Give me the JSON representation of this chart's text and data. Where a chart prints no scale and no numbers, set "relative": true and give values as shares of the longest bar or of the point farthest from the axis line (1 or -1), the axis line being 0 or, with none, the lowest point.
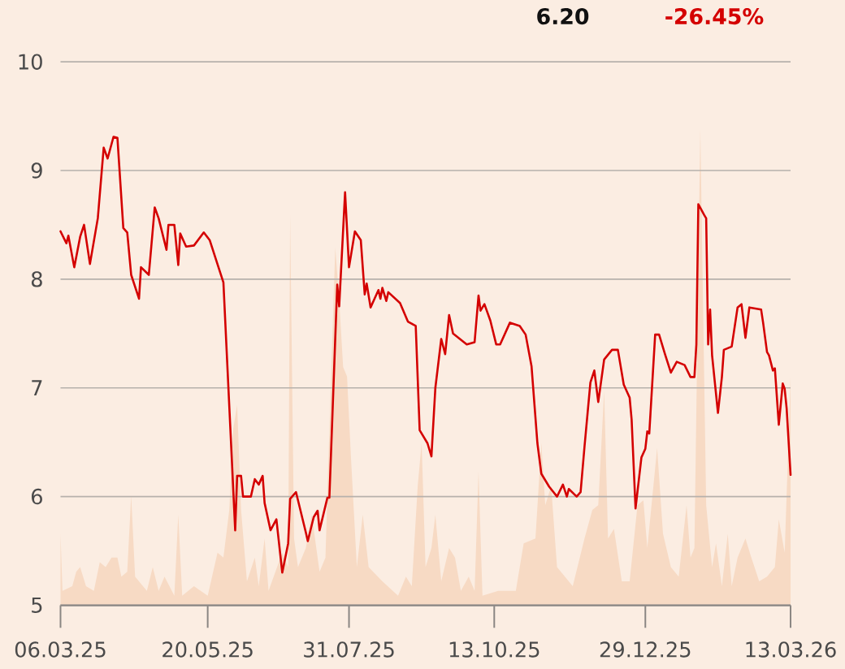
{
  "chart_data": [
    {
      "type": "area",
      "relative": true,
      "color": "#f7dac4",
      "xlim": [
        "2025-03-06",
        "2026-03-13"
      ],
      "xticks": [
        {
          "value": "2025-03-06",
          "label": "06.03.25"
        },
        {
          "value": "2025-05-20",
          "label": "20.05.25"
        },
        {
          "value": "2025-07-31",
          "label": "31.07.25"
        },
        {
          "value": "2025-10-13",
          "label": "13.10.25"
        },
        {
          "value": "2025-12-29",
          "label": "29.12.25"
        },
        {
          "value": "2026-03-13",
          "label": "13.03.26"
        }
      ],
      "x": [
        "2025-03-06",
        "2025-03-07",
        "2025-03-12",
        "2025-03-14",
        "2025-03-16",
        "2025-03-19",
        "2025-03-23",
        "2025-03-26",
        "2025-03-29",
        "2025-04-01",
        "2025-04-04",
        "2025-04-06",
        "2025-04-09",
        "2025-04-11",
        "2025-04-13",
        "2025-04-19",
        "2025-04-22",
        "2025-04-25",
        "2025-04-28",
        "2025-05-03",
        "2025-05-05",
        "2025-05-07",
        "2025-05-13",
        "2025-05-20",
        "2025-05-25",
        "2025-05-28",
        "2025-05-31",
        "2025-06-02",
        "2025-06-04",
        "2025-06-06",
        "2025-06-09",
        "2025-06-13",
        "2025-06-15",
        "2025-06-18",
        "2025-06-20",
        "2025-06-27",
        "2025-06-30",
        "2025-07-01",
        "2025-07-03",
        "2025-07-05",
        "2025-07-09",
        "2025-07-12",
        "2025-07-16",
        "2025-07-19",
        "2025-07-21",
        "2025-07-24",
        "2025-07-26",
        "2025-07-28",
        "2025-07-30",
        "2025-08-01",
        "2025-08-04",
        "2025-08-07",
        "2025-08-10",
        "2025-08-17",
        "2025-08-25",
        "2025-08-29",
        "2025-09-01",
        "2025-09-04",
        "2025-09-06",
        "2025-09-08",
        "2025-09-11",
        "2025-09-13",
        "2025-09-16",
        "2025-09-20",
        "2025-09-23",
        "2025-09-26",
        "2025-09-30",
        "2025-10-03",
        "2025-10-05",
        "2025-10-07",
        "2025-10-15",
        "2025-10-24",
        "2025-10-28",
        "2025-11-03",
        "2025-11-06",
        "2025-11-08",
        "2025-11-11",
        "2025-11-14",
        "2025-11-18",
        "2025-11-22",
        "2025-11-28",
        "2025-12-02",
        "2025-12-05",
        "2025-12-08",
        "2025-12-10",
        "2025-12-13",
        "2025-12-17",
        "2025-12-21",
        "2025-12-25",
        "2025-12-28",
        "2025-12-30",
        "2026-01-04",
        "2026-01-07",
        "2026-01-11",
        "2026-01-15",
        "2026-01-19",
        "2026-01-21",
        "2026-01-23",
        "2026-01-26",
        "2026-01-29",
        "2026-02-01",
        "2026-02-03",
        "2026-02-06",
        "2026-02-09",
        "2026-02-11",
        "2026-02-14",
        "2026-02-18",
        "2026-02-21",
        "2026-02-25",
        "2026-03-01",
        "2026-03-05",
        "2026-03-07",
        "2026-03-10",
        "2026-03-13"
      ],
      "values": [
        0.15,
        0.03,
        0.04,
        0.07,
        0.08,
        0.04,
        0.03,
        0.09,
        0.08,
        0.1,
        0.1,
        0.06,
        0.07,
        0.23,
        0.06,
        0.03,
        0.08,
        0.03,
        0.06,
        0.02,
        0.19,
        0.02,
        0.04,
        0.02,
        0.11,
        0.1,
        0.2,
        0.37,
        0.42,
        0.2,
        0.05,
        0.1,
        0.04,
        0.14,
        0.03,
        0.11,
        0.08,
        0.82,
        0.14,
        0.08,
        0.12,
        0.19,
        0.07,
        0.1,
        0.37,
        0.75,
        0.64,
        0.5,
        0.48,
        0.31,
        0.08,
        0.19,
        0.08,
        0.05,
        0.02,
        0.06,
        0.04,
        0.25,
        0.34,
        0.08,
        0.12,
        0.19,
        0.05,
        0.12,
        0.1,
        0.03,
        0.06,
        0.03,
        0.28,
        0.02,
        0.03,
        0.03,
        0.13,
        0.14,
        0.34,
        0.21,
        0.25,
        0.08,
        0.06,
        0.04,
        0.14,
        0.2,
        0.21,
        0.45,
        0.14,
        0.16,
        0.05,
        0.05,
        0.21,
        0.22,
        0.12,
        0.33,
        0.15,
        0.08,
        0.06,
        0.21,
        0.1,
        0.12,
        1.0,
        0.21,
        0.08,
        0.13,
        0.04,
        0.15,
        0.04,
        0.1,
        0.14,
        0.1,
        0.05,
        0.06,
        0.08,
        0.18,
        0.11,
        0.48
      ]
    },
    {
      "type": "line",
      "color": "#d40000",
      "annotations": [
        "6.20",
        "-26.45%"
      ],
      "xlim": [
        "2025-03-06",
        "2026-03-13"
      ],
      "ylim": [
        5,
        10
      ],
      "yticks": [
        5,
        6,
        7,
        8,
        9,
        10
      ],
      "grid": "y",
      "tick_labels": "y",
      "x": [
        "2025-03-06",
        "2025-03-09",
        "2025-03-10",
        "2025-03-13",
        "2025-03-16",
        "2025-03-18",
        "2025-03-21",
        "2025-03-25",
        "2025-03-28",
        "2025-03-30",
        "2025-04-02",
        "2025-04-04",
        "2025-04-07",
        "2025-04-09",
        "2025-04-11",
        "2025-04-15",
        "2025-04-16",
        "2025-04-20",
        "2025-04-23",
        "2025-04-25",
        "2025-04-29",
        "2025-04-30",
        "2025-05-03",
        "2025-05-05",
        "2025-05-06",
        "2025-05-09",
        "2025-05-13",
        "2025-05-18",
        "2025-05-21",
        "2025-05-28",
        "2025-06-03",
        "2025-06-04",
        "2025-06-06",
        "2025-06-07",
        "2025-06-11",
        "2025-06-13",
        "2025-06-15",
        "2025-06-17",
        "2025-06-18",
        "2025-06-21",
        "2025-06-24",
        "2025-06-27",
        "2025-06-30",
        "2025-07-01",
        "2025-07-04",
        "2025-07-09",
        "2025-07-10",
        "2025-07-13",
        "2025-07-15",
        "2025-07-16",
        "2025-07-20",
        "2025-07-21",
        "2025-07-25",
        "2025-07-26",
        "2025-07-29",
        "2025-07-31",
        "2025-08-03",
        "2025-08-06",
        "2025-08-08",
        "2025-08-09",
        "2025-08-11",
        "2025-08-15",
        "2025-08-16",
        "2025-08-17",
        "2025-08-19",
        "2025-08-20",
        "2025-08-26",
        "2025-08-30",
        "2025-09-03",
        "2025-09-05",
        "2025-09-09",
        "2025-09-11",
        "2025-09-13",
        "2025-09-16",
        "2025-09-18",
        "2025-09-20",
        "2025-09-22",
        "2025-09-29",
        "2025-10-03",
        "2025-10-05",
        "2025-10-06",
        "2025-10-08",
        "2025-10-11",
        "2025-10-14",
        "2025-10-16",
        "2025-10-21",
        "2025-10-26",
        "2025-10-29",
        "2025-11-01",
        "2025-11-04",
        "2025-11-06",
        "2025-11-10",
        "2025-11-14",
        "2025-11-17",
        "2025-11-19",
        "2025-11-20",
        "2025-11-24",
        "2025-11-26",
        "2025-11-28",
        "2025-12-01",
        "2025-12-03",
        "2025-12-05",
        "2025-12-08",
        "2025-12-12",
        "2025-12-15",
        "2025-12-18",
        "2025-12-21",
        "2025-12-22",
        "2025-12-24",
        "2025-12-27",
        "2025-12-29",
        "2025-12-30",
        "2025-12-31",
        "2026-01-03",
        "2026-01-05",
        "2026-01-08",
        "2026-01-11",
        "2026-01-14",
        "2026-01-18",
        "2026-01-21",
        "2026-01-23",
        "2026-01-24",
        "2026-01-25",
        "2026-01-28",
        "2026-01-29",
        "2026-01-30",
        "2026-01-31",
        "2026-02-01",
        "2026-02-04",
        "2026-02-06",
        "2026-02-07",
        "2026-02-11",
        "2026-02-14",
        "2026-02-16",
        "2026-02-18",
        "2026-02-20",
        "2026-02-26",
        "2026-02-27",
        "2026-03-01",
        "2026-03-02",
        "2026-03-04",
        "2026-03-05",
        "2026-03-07",
        "2026-03-09",
        "2026-03-10",
        "2026-03-11",
        "2026-03-13"
      ],
      "values": [
        8.44,
        8.33,
        8.4,
        8.11,
        8.39,
        8.5,
        8.14,
        8.56,
        9.21,
        9.11,
        9.31,
        9.3,
        8.47,
        8.43,
        8.04,
        7.82,
        8.11,
        8.04,
        8.66,
        8.56,
        8.27,
        8.5,
        8.5,
        8.13,
        8.42,
        8.3,
        8.31,
        8.43,
        8.36,
        7.97,
        5.69,
        6.19,
        6.19,
        6.0,
        6.0,
        6.16,
        6.11,
        6.19,
        5.94,
        5.69,
        5.79,
        5.3,
        5.57,
        5.98,
        6.04,
        5.67,
        5.59,
        5.81,
        5.87,
        5.69,
        5.99,
        5.99,
        7.95,
        7.75,
        8.8,
        8.11,
        8.44,
        8.36,
        7.86,
        7.96,
        7.74,
        7.9,
        7.82,
        7.92,
        7.8,
        7.88,
        7.78,
        7.61,
        7.57,
        6.61,
        6.49,
        6.37,
        7.0,
        7.45,
        7.31,
        7.67,
        7.5,
        7.4,
        7.42,
        7.85,
        7.71,
        7.77,
        7.62,
        7.4,
        7.4,
        7.6,
        7.57,
        7.49,
        7.2,
        6.49,
        6.21,
        6.09,
        6.0,
        6.11,
        6.0,
        6.07,
        6.0,
        6.04,
        6.46,
        7.05,
        7.16,
        6.87,
        7.26,
        7.35,
        7.35,
        7.03,
        6.91,
        6.71,
        5.89,
        6.36,
        6.44,
        6.6,
        6.58,
        7.49,
        7.49,
        7.31,
        7.14,
        7.24,
        7.21,
        7.1,
        7.1,
        7.4,
        8.69,
        8.59,
        8.56,
        7.4,
        7.72,
        7.3,
        6.77,
        7.1,
        7.35,
        7.38,
        7.74,
        7.77,
        7.46,
        7.74,
        7.72,
        7.6,
        7.33,
        7.3,
        7.16,
        7.18,
        6.66,
        7.04,
        6.99,
        6.81,
        6.2
      ]
    }
  ]
}
